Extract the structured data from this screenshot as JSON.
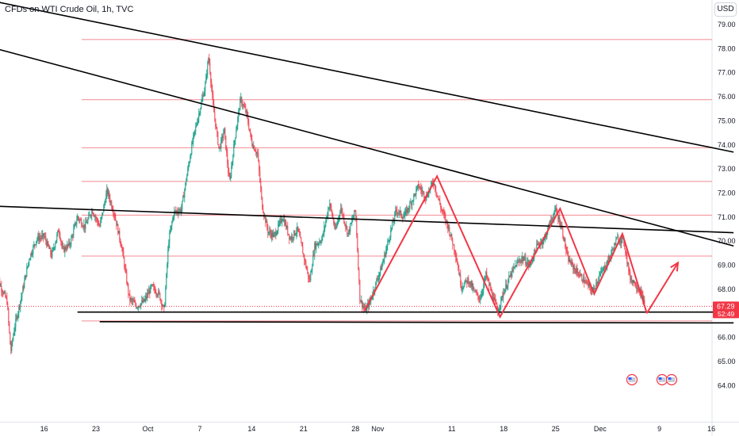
{
  "header": {
    "symbol_title": "CFDs on WTI Crude Oil, 1h, TVC"
  },
  "currency": "USD",
  "chart_data": {
    "type": "candlestick",
    "title": "CFDs on WTI Crude Oil, 1h, TVC",
    "y_ticks": [
      "79.00",
      "78.00",
      "77.00",
      "76.00",
      "75.00",
      "74.00",
      "73.00",
      "72.00",
      "71.00",
      "70.00",
      "69.00",
      "68.00",
      "66.00",
      "65.00",
      "64.00"
    ],
    "y_range": [
      63.9,
      79.3
    ],
    "x_ticks": [
      {
        "label": "16",
        "day": -14
      },
      {
        "label": "23",
        "day": -7
      },
      {
        "label": "Oct",
        "day": 0
      },
      {
        "label": "7",
        "day": 7
      },
      {
        "label": "14",
        "day": 14
      },
      {
        "label": "21",
        "day": 21
      },
      {
        "label": "28",
        "day": 28
      },
      {
        "label": "Nov",
        "day": 31
      },
      {
        "label": "11",
        "day": 41
      },
      {
        "label": "18",
        "day": 48
      },
      {
        "label": "25",
        "day": 55
      },
      {
        "label": "Dec",
        "day": 61
      },
      {
        "label": "9",
        "day": 69
      },
      {
        "label": "16",
        "day": 76
      }
    ],
    "last_price": {
      "value": "67.29",
      "countdown": "52:49"
    },
    "horizontal_levels": [
      78.38,
      75.88,
      73.88,
      72.48,
      71.08,
      69.38,
      66.68
    ],
    "trend_lines": [
      {
        "from": {
          "day": -20.5,
          "price": 79.95
        },
        "to": {
          "day": 79,
          "price": 73.7
        }
      },
      {
        "from": {
          "day": -20.5,
          "price": 78.0
        },
        "to": {
          "day": 79,
          "price": 69.8
        }
      },
      {
        "from": {
          "day": -20.5,
          "price": 71.45
        },
        "to": {
          "day": 79,
          "price": 70.35
        }
      },
      {
        "from": {
          "day": -9.5,
          "price": 67.05
        },
        "to": {
          "day": 79,
          "price": 67.05
        }
      },
      {
        "from": {
          "day": -6.5,
          "price": 66.65
        },
        "to": {
          "day": 79,
          "price": 66.6
        }
      }
    ],
    "pattern_path": [
      {
        "day": 29.2,
        "price": 67.1
      },
      {
        "day": 39,
        "price": 72.7
      },
      {
        "day": 47.5,
        "price": 66.85
      },
      {
        "day": 55.6,
        "price": 71.35
      },
      {
        "day": 60.2,
        "price": 67.8
      },
      {
        "day": 64,
        "price": 70.3
      },
      {
        "day": 67.3,
        "price": 67.0
      }
    ],
    "projection_arrow": {
      "from": {
        "day": 67.3,
        "price": 67.0
      },
      "to": {
        "day": 71.5,
        "price": 69.1
      }
    },
    "price_path": [
      {
        "day": -20.5,
        "price": 68.6
      },
      {
        "day": -19,
        "price": 67.5
      },
      {
        "day": -18.5,
        "price": 65.4
      },
      {
        "day": -18,
        "price": 66.4
      },
      {
        "day": -17,
        "price": 67.8
      },
      {
        "day": -16,
        "price": 69.3
      },
      {
        "day": -15,
        "price": 70.1
      },
      {
        "day": -14,
        "price": 70.2
      },
      {
        "day": -13,
        "price": 69.4
      },
      {
        "day": -12,
        "price": 70.5
      },
      {
        "day": -11.5,
        "price": 69.6
      },
      {
        "day": -10.5,
        "price": 69.9
      },
      {
        "day": -9.5,
        "price": 71.0
      },
      {
        "day": -8.5,
        "price": 70.6
      },
      {
        "day": -7.5,
        "price": 71.3
      },
      {
        "day": -6.5,
        "price": 70.6
      },
      {
        "day": -5.5,
        "price": 72.1
      },
      {
        "day": -4.5,
        "price": 71.1
      },
      {
        "day": -3.5,
        "price": 69.7
      },
      {
        "day": -2.5,
        "price": 67.6
      },
      {
        "day": -1.5,
        "price": 67.3
      },
      {
        "day": -0.5,
        "price": 67.5
      },
      {
        "day": 0.5,
        "price": 68.1
      },
      {
        "day": 1.5,
        "price": 67.8
      },
      {
        "day": 2.2,
        "price": 67.1
      },
      {
        "day": 2.8,
        "price": 70.0
      },
      {
        "day": 3.5,
        "price": 71.2
      },
      {
        "day": 4.5,
        "price": 71.3
      },
      {
        "day": 5.3,
        "price": 72.8
      },
      {
        "day": 6,
        "price": 74.1
      },
      {
        "day": 6.8,
        "price": 75.2
      },
      {
        "day": 7.7,
        "price": 76.4
      },
      {
        "day": 8.2,
        "price": 77.7
      },
      {
        "day": 8.8,
        "price": 75.6
      },
      {
        "day": 9.6,
        "price": 73.8
      },
      {
        "day": 10.3,
        "price": 74.6
      },
      {
        "day": 11,
        "price": 72.4
      },
      {
        "day": 11.7,
        "price": 74.2
      },
      {
        "day": 12.5,
        "price": 75.9
      },
      {
        "day": 13.3,
        "price": 75.3
      },
      {
        "day": 14,
        "price": 74.1
      },
      {
        "day": 14.8,
        "price": 73.6
      },
      {
        "day": 15.4,
        "price": 71.5
      },
      {
        "day": 16.2,
        "price": 70.4
      },
      {
        "day": 17,
        "price": 70.2
      },
      {
        "day": 18.2,
        "price": 71.0
      },
      {
        "day": 19.2,
        "price": 70.1
      },
      {
        "day": 20.2,
        "price": 70.5
      },
      {
        "day": 21,
        "price": 69.4
      },
      {
        "day": 21.8,
        "price": 68.3
      },
      {
        "day": 22.5,
        "price": 69.8
      },
      {
        "day": 23.5,
        "price": 70.1
      },
      {
        "day": 24.5,
        "price": 71.6
      },
      {
        "day": 25.3,
        "price": 70.4
      },
      {
        "day": 26,
        "price": 71.4
      },
      {
        "day": 27,
        "price": 70.3
      },
      {
        "day": 28,
        "price": 71.3
      },
      {
        "day": 28.6,
        "price": 67.6
      },
      {
        "day": 29.3,
        "price": 67.1
      },
      {
        "day": 30,
        "price": 67.5
      },
      {
        "day": 30.8,
        "price": 68.3
      },
      {
        "day": 31.6,
        "price": 69.0
      },
      {
        "day": 32.5,
        "price": 70.1
      },
      {
        "day": 33.5,
        "price": 71.3
      },
      {
        "day": 34.5,
        "price": 71.0
      },
      {
        "day": 35.5,
        "price": 71.6
      },
      {
        "day": 36.5,
        "price": 72.3
      },
      {
        "day": 37.5,
        "price": 71.8
      },
      {
        "day": 38.5,
        "price": 72.5
      },
      {
        "day": 39.5,
        "price": 71.4
      },
      {
        "day": 40.5,
        "price": 70.6
      },
      {
        "day": 41.5,
        "price": 69.5
      },
      {
        "day": 42.3,
        "price": 68.1
      },
      {
        "day": 43.2,
        "price": 68.4
      },
      {
        "day": 44,
        "price": 67.9
      },
      {
        "day": 44.8,
        "price": 67.6
      },
      {
        "day": 45.6,
        "price": 68.6
      },
      {
        "day": 46.4,
        "price": 67.8
      },
      {
        "day": 47.2,
        "price": 67.1
      },
      {
        "day": 48,
        "price": 67.9
      },
      {
        "day": 48.8,
        "price": 68.5
      },
      {
        "day": 49.6,
        "price": 69.0
      },
      {
        "day": 50.5,
        "price": 69.3
      },
      {
        "day": 51.5,
        "price": 69.0
      },
      {
        "day": 52.5,
        "price": 69.8
      },
      {
        "day": 53.5,
        "price": 70.1
      },
      {
        "day": 54.3,
        "price": 70.8
      },
      {
        "day": 55,
        "price": 71.3
      },
      {
        "day": 55.8,
        "price": 70.6
      },
      {
        "day": 56.6,
        "price": 69.3
      },
      {
        "day": 57.4,
        "price": 68.9
      },
      {
        "day": 58.2,
        "price": 68.6
      },
      {
        "day": 59,
        "price": 68.3
      },
      {
        "day": 60,
        "price": 67.9
      },
      {
        "day": 60.8,
        "price": 68.5
      },
      {
        "day": 61.6,
        "price": 68.9
      },
      {
        "day": 62.4,
        "price": 69.4
      },
      {
        "day": 63.3,
        "price": 70.1
      },
      {
        "day": 64.2,
        "price": 70.0
      },
      {
        "day": 65,
        "price": 68.5
      },
      {
        "day": 65.8,
        "price": 68.2
      },
      {
        "day": 66.6,
        "price": 67.8
      },
      {
        "day": 67,
        "price": 67.3
      }
    ]
  }
}
